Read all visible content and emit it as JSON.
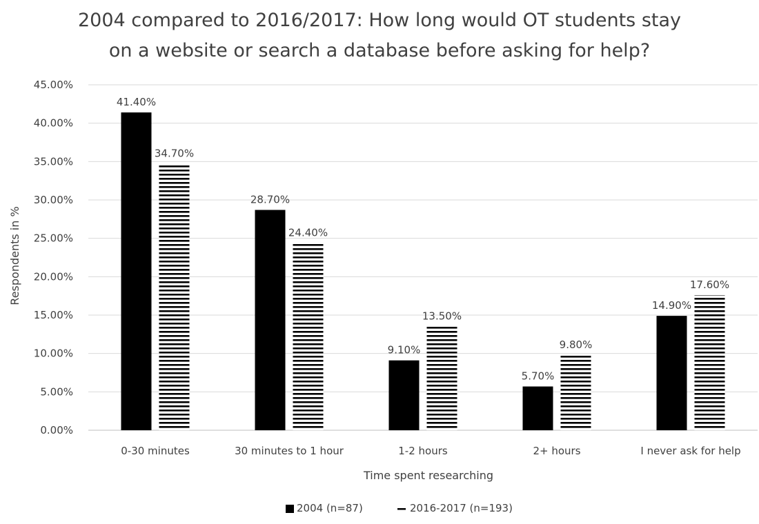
{
  "chart_data": {
    "type": "bar",
    "title_lines": [
      "2004 compared to 2016/2017: How long would OT students stay",
      "on a website or search a database before asking for help?"
    ],
    "xlabel": "Time spent researching",
    "ylabel": "Respondents in %",
    "categories": [
      "0-30 minutes",
      "30 minutes to 1 hour",
      "1-2 hours",
      "2+ hours",
      "I never ask for help"
    ],
    "ylim": [
      0,
      45
    ],
    "yticks": [
      0,
      5,
      10,
      15,
      20,
      25,
      30,
      35,
      40,
      45
    ],
    "ytick_labels": [
      "0.00%",
      "5.00%",
      "10.00%",
      "15.00%",
      "20.00%",
      "25.00%",
      "30.00%",
      "35.00%",
      "40.00%",
      "45.00%"
    ],
    "grid": true,
    "legend_position": "bottom",
    "series": [
      {
        "name": "2004 (n=87)",
        "values": [
          41.4,
          28.7,
          9.1,
          5.7,
          14.9
        ],
        "labels": [
          "41.40%",
          "28.70%",
          "9.10%",
          "5.70%",
          "14.90%"
        ],
        "fill": "solid",
        "color": "#000000"
      },
      {
        "name": "2016-2017 (n=193)",
        "values": [
          34.7,
          24.4,
          13.5,
          9.8,
          17.6
        ],
        "labels": [
          "34.70%",
          "24.40%",
          "13.50%",
          "9.80%",
          "17.60%"
        ],
        "fill": "horizontal-lines",
        "color": "#000000"
      }
    ]
  }
}
